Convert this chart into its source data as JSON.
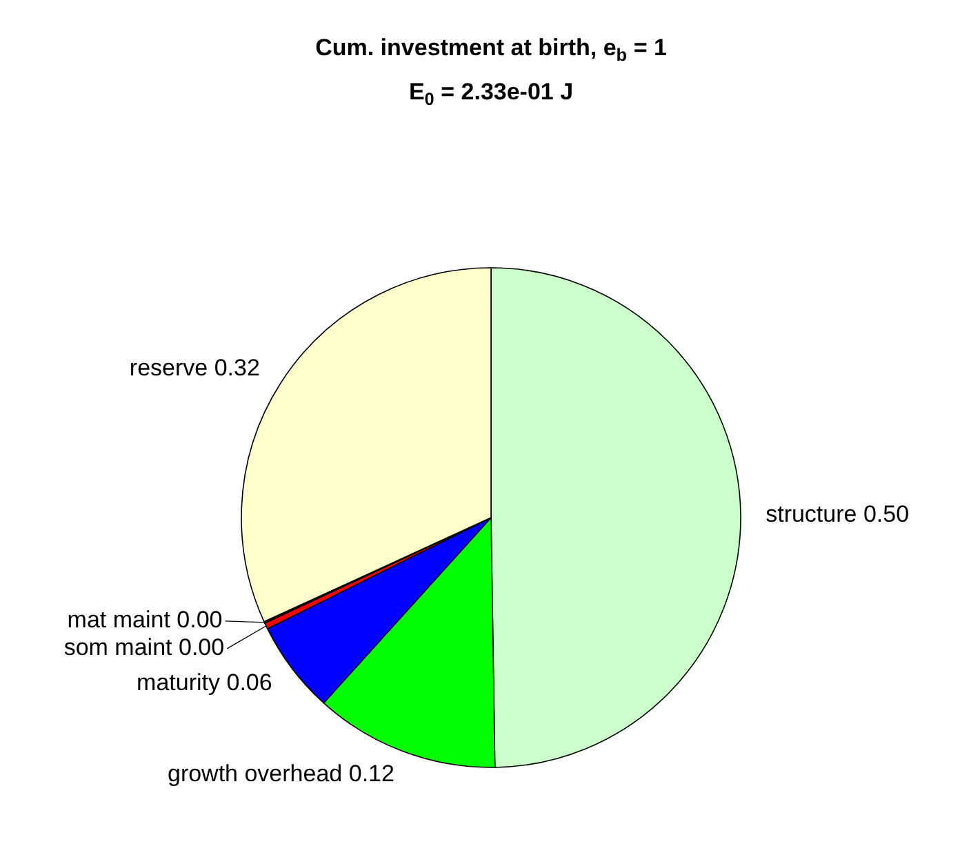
{
  "chart_data": {
    "type": "pie",
    "title": "Cum. investment at birth, e$_{b}$ = 1",
    "subtitle": "E$_{0}$ = 2.33e-01 J",
    "categories": [
      "structure",
      "growth overhead",
      "maturity",
      "som maint",
      "mat maint",
      "reserve"
    ],
    "values": [
      0.5,
      0.12,
      0.06,
      0.004,
      0.001,
      0.32
    ],
    "value_labels": [
      "0.50",
      "0.12",
      "0.06",
      "0.00",
      "0.00",
      "0.32"
    ],
    "colors": [
      "#ccffcc",
      "#00ff00",
      "#0000ff",
      "#ff0000",
      "#800000",
      "#ffffcc"
    ]
  }
}
